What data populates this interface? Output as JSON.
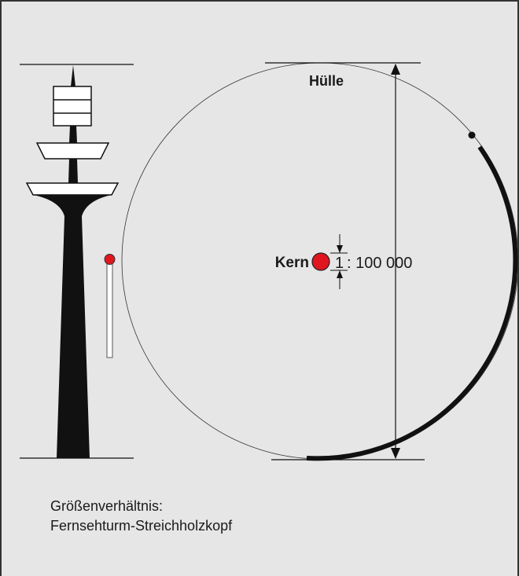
{
  "labels": {
    "shell": "Hülle",
    "core": "Kern",
    "ratio_one": "1",
    "ratio_rest": ": 100 000"
  },
  "caption": {
    "line1": "Größenverhältnis:",
    "line2": "Fernsehturm-Streichholzkopf"
  }
}
